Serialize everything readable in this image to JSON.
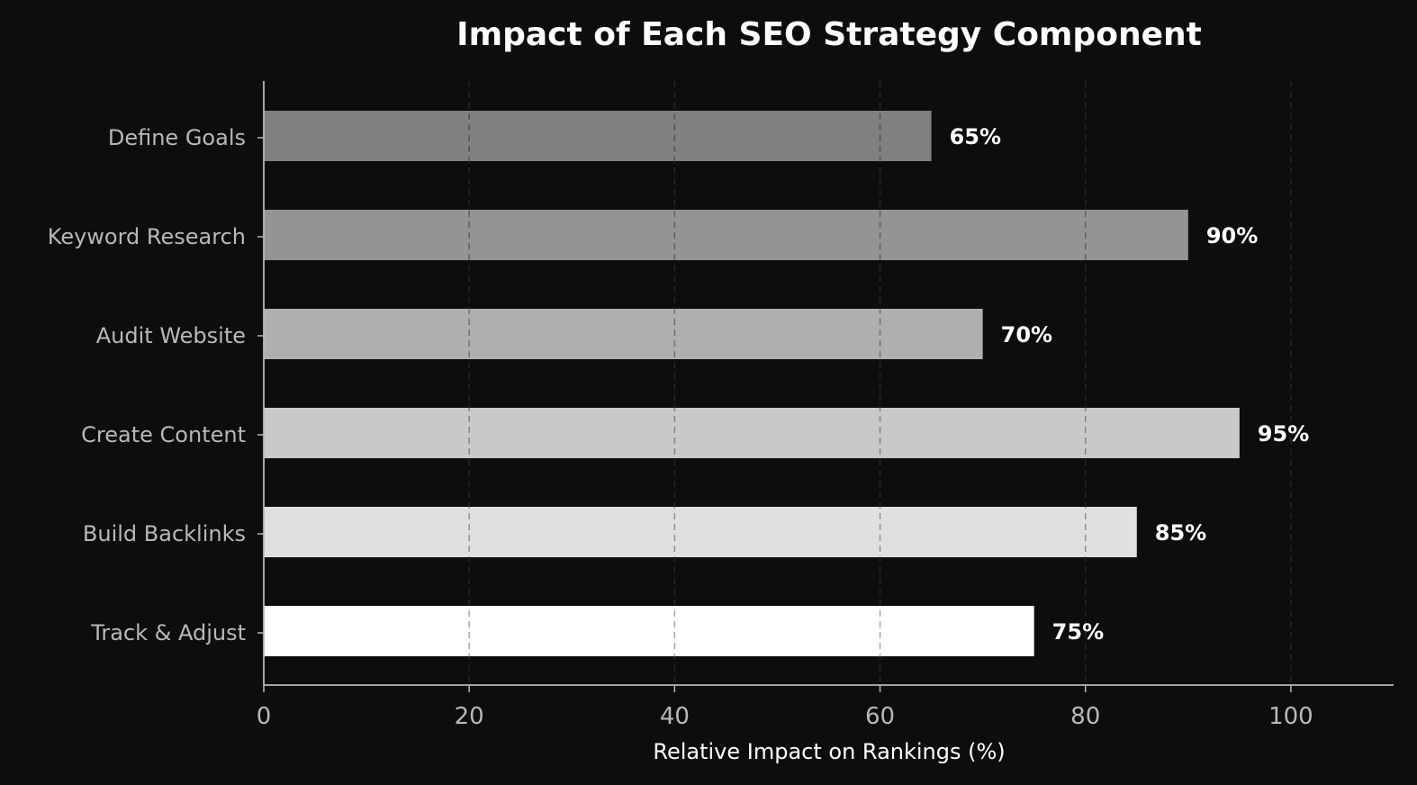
{
  "chart_data": {
    "type": "bar",
    "orientation": "horizontal",
    "title": "Impact of Each SEO Strategy Component",
    "xlabel": "Relative Impact on Rankings (%)",
    "ylabel": "",
    "categories": [
      "Define Goals",
      "Keyword Research",
      "Audit Website",
      "Create Content",
      "Build Backlinks",
      "Track & Adjust"
    ],
    "values": [
      65,
      90,
      70,
      95,
      85,
      75
    ],
    "value_labels": [
      "65%",
      "90%",
      "70%",
      "95%",
      "85%",
      "75%"
    ],
    "xlim": [
      0,
      110
    ],
    "xticks": [
      0,
      20,
      40,
      60,
      80,
      100
    ],
    "xtick_labels": [
      "0",
      "20",
      "40",
      "60",
      "80",
      "100"
    ],
    "grid": "x, dashed",
    "bar_colors": [
      "#808080",
      "#949494",
      "#afafaf",
      "#c9c9c9",
      "#e0e0e0",
      "#ffffff"
    ],
    "background": "#0d0d0d",
    "axis_color": "#b8b8b8",
    "grid_color": "#555555"
  }
}
